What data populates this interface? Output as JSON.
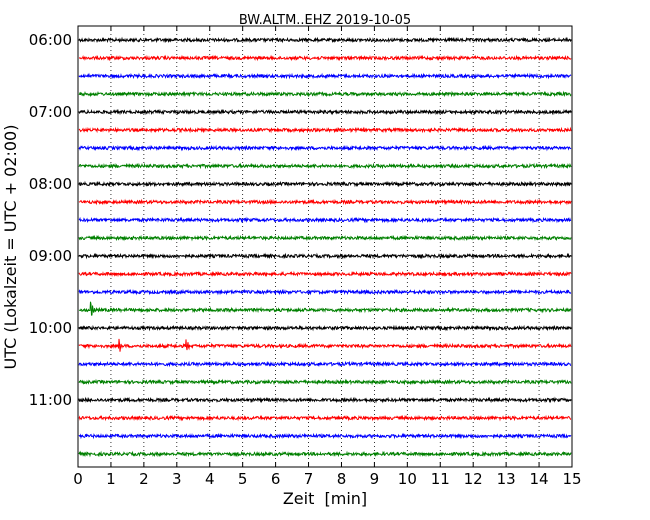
{
  "chart_data": {
    "type": "line",
    "title": "BW.ALTM..EHZ 2019-10-05",
    "xlabel": "Zeit  [min]",
    "ylabel": "UTC (Lokalzeit = UTC + 02:00)",
    "xlim": [
      0,
      15
    ],
    "x_ticks": [
      "0",
      "1",
      "2",
      "3",
      "4",
      "5",
      "6",
      "7",
      "8",
      "9",
      "10",
      "11",
      "12",
      "13",
      "14",
      "15"
    ],
    "y_ticks": [
      "06:00",
      "07:00",
      "08:00",
      "09:00",
      "10:00",
      "11:00"
    ],
    "grid": "vertical dotted",
    "trace_interval_minutes": 15,
    "series": [
      {
        "start": "06:00",
        "color": "#000000"
      },
      {
        "start": "06:15",
        "color": "#ff0000"
      },
      {
        "start": "06:30",
        "color": "#0000ff"
      },
      {
        "start": "06:45",
        "color": "#008000"
      },
      {
        "start": "07:00",
        "color": "#000000"
      },
      {
        "start": "07:15",
        "color": "#ff0000"
      },
      {
        "start": "07:30",
        "color": "#0000ff"
      },
      {
        "start": "07:45",
        "color": "#008000"
      },
      {
        "start": "08:00",
        "color": "#000000"
      },
      {
        "start": "08:15",
        "color": "#ff0000"
      },
      {
        "start": "08:30",
        "color": "#0000ff"
      },
      {
        "start": "08:45",
        "color": "#008000"
      },
      {
        "start": "09:00",
        "color": "#000000"
      },
      {
        "start": "09:15",
        "color": "#ff0000"
      },
      {
        "start": "09:30",
        "color": "#0000ff"
      },
      {
        "start": "09:45",
        "color": "#008000",
        "events": [
          {
            "x": 0.4,
            "amp": 1.0
          }
        ]
      },
      {
        "start": "10:00",
        "color": "#000000"
      },
      {
        "start": "10:15",
        "color": "#ff0000",
        "events": [
          {
            "x": 1.25,
            "amp": 0.9
          },
          {
            "x": 3.3,
            "amp": 0.6
          }
        ]
      },
      {
        "start": "10:30",
        "color": "#0000ff"
      },
      {
        "start": "10:45",
        "color": "#008000"
      },
      {
        "start": "11:00",
        "color": "#000000"
      },
      {
        "start": "11:15",
        "color": "#ff0000"
      },
      {
        "start": "11:30",
        "color": "#0000ff"
      },
      {
        "start": "11:45",
        "color": "#008000"
      }
    ]
  }
}
